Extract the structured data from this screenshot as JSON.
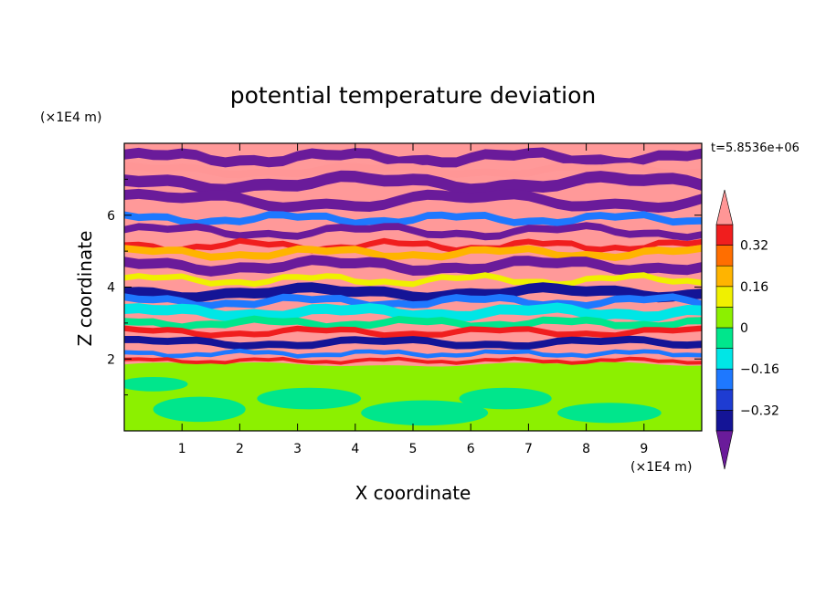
{
  "chart_data": {
    "type": "heatmap",
    "title": "potential temperature deviation",
    "xlabel": "X coordinate",
    "ylabel": "Z coordinate",
    "x_unit": "(×1E4 m)",
    "y_unit": "(×1E4 m)",
    "time_label": "t=5.8536e+06",
    "xlim": [
      0,
      10
    ],
    "ylim": [
      0,
      8
    ],
    "x_ticks": [
      1,
      2,
      3,
      4,
      5,
      6,
      7,
      8,
      9
    ],
    "y_ticks": [
      2,
      4,
      6
    ],
    "x_tick_labels": [
      "1",
      "2",
      "3",
      "4",
      "5",
      "6",
      "7",
      "8",
      "9"
    ],
    "y_tick_labels": [
      "2",
      "4",
      "6"
    ],
    "colorbar": {
      "levels": [
        -0.48,
        -0.4,
        -0.32,
        -0.24,
        -0.16,
        -0.08,
        0,
        0.08,
        0.16,
        0.24,
        0.32,
        0.4,
        0.48
      ],
      "colors": [
        "#6a1b9a",
        "#141496",
        "#1e3cd2",
        "#1e78ff",
        "#00e6e6",
        "#00e68c",
        "#8cf000",
        "#f0f000",
        "#ffb400",
        "#ff6e00",
        "#f01e1e",
        "#ff9696"
      ],
      "under_color": "#6a1b9a",
      "over_color": "#ff9696",
      "tick_values": [
        0.32,
        0.16,
        0,
        -0.16,
        -0.32
      ],
      "tick_labels": [
        "0.32",
        "0.16",
        "0",
        "−0.16",
        "−0.32"
      ]
    },
    "field_summary": [
      {
        "z_range": [
          0,
          1.8
        ],
        "value": 0.02
      },
      {
        "z_range": [
          2.0,
          3.6
        ],
        "value": -0.2
      },
      {
        "z_range": [
          3.6,
          5.5
        ],
        "value": 0.15
      },
      {
        "z_range": [
          5.5,
          8.0
        ],
        "value": 0.45
      }
    ]
  }
}
